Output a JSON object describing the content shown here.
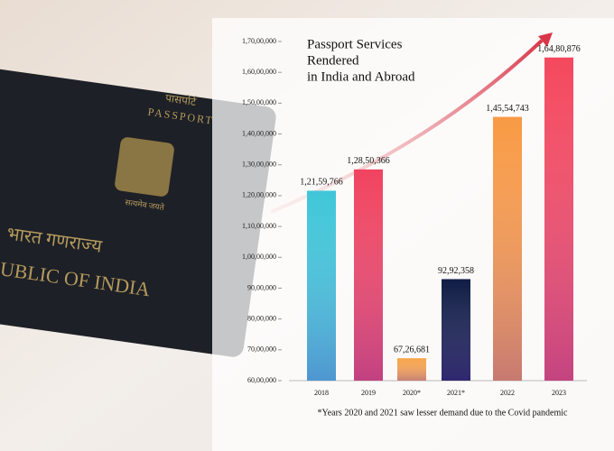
{
  "passport_cover": {
    "lines": [
      "पासपोर्ट",
      "PASSPORT",
      "सत्यमेव जयते",
      "भारत गणराज्य",
      "UBLIC OF INDIA"
    ]
  },
  "chart_data": {
    "type": "bar",
    "title": [
      "Passport Services",
      "Rendered",
      "in India and Abroad"
    ],
    "categories": [
      "2018",
      "2019",
      "2020*",
      "2021*",
      "2022",
      "2023"
    ],
    "values": [
      12159766,
      12850366,
      6726681,
      9292358,
      14554743,
      16480876
    ],
    "value_labels": [
      "1,21,59,766",
      "1,28,50,366",
      "67,26,681",
      "92,92,358",
      "1,45,54,743",
      "1,64,80,876"
    ],
    "colors": [
      "#3fc6d8",
      "#f0435f",
      "#f7a44a",
      "#0f1c45",
      "#f89a45",
      "#f4485e"
    ],
    "ylim": [
      6000000,
      17000000
    ],
    "yticks": [
      {
        "value": 6000000,
        "label": "60,00,000"
      },
      {
        "value": 7000000,
        "label": "70,00,000"
      },
      {
        "value": 8000000,
        "label": "80,00,000"
      },
      {
        "value": 9000000,
        "label": "90,00,000"
      },
      {
        "value": 10000000,
        "label": "1,00,00,000"
      },
      {
        "value": 11000000,
        "label": "1,10,00,000"
      },
      {
        "value": 12000000,
        "label": "1,20,00,000"
      },
      {
        "value": 13000000,
        "label": "1,30,00,000"
      },
      {
        "value": 14000000,
        "label": "1,40,00,000"
      },
      {
        "value": 15000000,
        "label": "1,50,00,000"
      },
      {
        "value": 16000000,
        "label": "1,60,00,000"
      },
      {
        "value": 17000000,
        "label": "1,70,00,000"
      }
    ],
    "footnote": "*Years 2020 and 2021 saw lesser demand due to the Covid pandemic"
  }
}
